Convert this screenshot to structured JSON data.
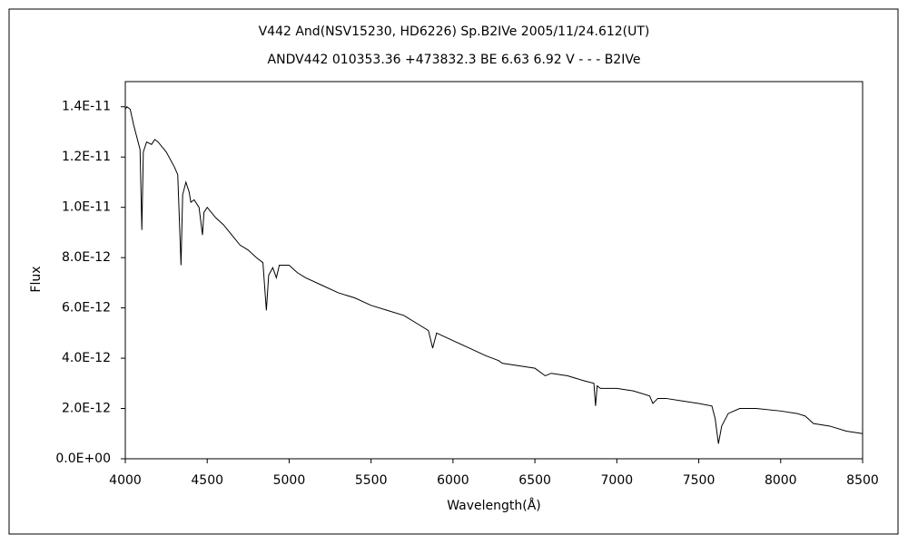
{
  "chart_data": {
    "type": "line",
    "title": "V442 And(NSV15230,  HD6226)    Sp.B2IVe    2005/11/24.612(UT)",
    "subtitle": "ANDV442 010353.36 +473832.3 BE 6.63 6.92 V - - - B2IVe",
    "x_label": "Wavelength(Å)",
    "y_label": "Flux",
    "xlim": [
      4000,
      8500
    ],
    "xticks": [
      4000,
      4500,
      5000,
      5500,
      6000,
      6500,
      7000,
      7500,
      8000,
      8500
    ],
    "ylim": [
      0,
      1.5e-11
    ],
    "yticks": [
      {
        "value": 0,
        "label": "0.0E+00"
      },
      {
        "value": 2e-12,
        "label": "2.0E-12"
      },
      {
        "value": 4e-12,
        "label": "4.0E-12"
      },
      {
        "value": 6e-12,
        "label": "6.0E-12"
      },
      {
        "value": 8e-12,
        "label": "8.0E-12"
      },
      {
        "value": 1e-11,
        "label": "1.0E-11"
      },
      {
        "value": 1.2e-11,
        "label": "1.2E-11"
      },
      {
        "value": 1.4e-11,
        "label": "1.4E-11"
      }
    ],
    "grid": false,
    "series": [
      {
        "color": "#000000",
        "x": [
          4000,
          4010,
          4030,
          4050,
          4070,
          4090,
          4101,
          4110,
          4130,
          4160,
          4180,
          4200,
          4250,
          4300,
          4320,
          4340,
          4350,
          4370,
          4390,
          4400,
          4420,
          4450,
          4471,
          4480,
          4500,
          4550,
          4600,
          4650,
          4700,
          4750,
          4800,
          4840,
          4861,
          4875,
          4900,
          4922,
          4940,
          5000,
          5050,
          5100,
          5200,
          5300,
          5400,
          5500,
          5600,
          5700,
          5800,
          5850,
          5876,
          5900,
          6000,
          6100,
          6200,
          6280,
          6300,
          6400,
          6500,
          6563,
          6600,
          6700,
          6800,
          6860,
          6870,
          6880,
          6900,
          7000,
          7100,
          7200,
          7220,
          7250,
          7300,
          7400,
          7500,
          7580,
          7600,
          7620,
          7640,
          7680,
          7750,
          7850,
          8000,
          8100,
          8150,
          8200,
          8300,
          8400,
          8500
        ],
        "values": [
          1.39e-11,
          1.4e-11,
          1.39e-11,
          1.33e-11,
          1.28e-11,
          1.23e-11,
          9.1e-12,
          1.22e-11,
          1.26e-11,
          1.25e-11,
          1.27e-11,
          1.26e-11,
          1.22e-11,
          1.16e-11,
          1.13e-11,
          7.7e-12,
          1.05e-11,
          1.1e-11,
          1.06e-11,
          1.02e-11,
          1.03e-11,
          1e-11,
          8.9e-12,
          9.8e-12,
          1e-11,
          9.6e-12,
          9.3e-12,
          8.9e-12,
          8.5e-12,
          8.3e-12,
          8e-12,
          7.8e-12,
          5.9e-12,
          7.3e-12,
          7.6e-12,
          7.2e-12,
          7.7e-12,
          7.7e-12,
          7.4e-12,
          7.2e-12,
          6.9e-12,
          6.6e-12,
          6.4e-12,
          6.1e-12,
          5.9e-12,
          5.7e-12,
          5.3e-12,
          5.1e-12,
          4.4e-12,
          5e-12,
          4.7e-12,
          4.4e-12,
          4.1e-12,
          3.9e-12,
          3.8e-12,
          3.7e-12,
          3.6e-12,
          3.3e-12,
          3.4e-12,
          3.3e-12,
          3.1e-12,
          3e-12,
          2.1e-12,
          2.9e-12,
          2.8e-12,
          2.8e-12,
          2.7e-12,
          2.5e-12,
          2.2e-12,
          2.4e-12,
          2.4e-12,
          2.3e-12,
          2.2e-12,
          2.1e-12,
          1.6e-12,
          6e-13,
          1.3e-12,
          1.8e-12,
          2e-12,
          2e-12,
          1.9e-12,
          1.8e-12,
          1.7e-12,
          1.4e-12,
          1.3e-12,
          1.1e-12,
          1e-12
        ]
      }
    ]
  }
}
